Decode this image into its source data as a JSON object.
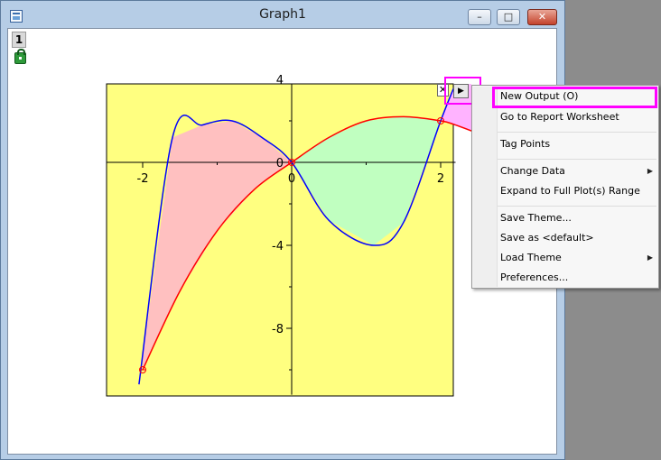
{
  "window": {
    "title": "Graph1",
    "minimize_glyph": "–",
    "maximize_glyph": "□",
    "close_glyph": "✕"
  },
  "layer": {
    "tab_label": "1"
  },
  "plot_buttons": {
    "close_glyph": "✕",
    "arrow_glyph": "▶"
  },
  "chart_data": {
    "type": "area",
    "x_ticks": [
      -2,
      0,
      2
    ],
    "y_ticks": [
      4,
      0,
      -4,
      -8
    ],
    "xlim": [
      -2.5,
      2.2
    ],
    "ylim": [
      -11.2,
      3.8
    ],
    "grid": false,
    "legend": "none",
    "series": [
      {
        "color": "#0000ff",
        "x": [
          -2.05,
          -1.6,
          -1.2,
          -0.8,
          -0.4,
          0,
          0.5,
          1.1,
          1.5,
          2.0,
          2.2
        ],
        "y": [
          -10.7,
          1.2,
          1.8,
          2.0,
          1.2,
          0,
          -2.8,
          -4.0,
          -2.9,
          2.0,
          3.8
        ]
      },
      {
        "color": "#ff0000",
        "x": [
          -2,
          -1.5,
          -1,
          -0.5,
          0,
          0.5,
          1,
          1.5,
          2,
          2.2,
          2.5
        ],
        "y": [
          -10,
          -6.2,
          -3.3,
          -1.3,
          0,
          1.2,
          2.0,
          2.2,
          2.0,
          1.8,
          1.4
        ]
      }
    ],
    "intersection_points": [
      {
        "x": -2,
        "y": -10
      },
      {
        "x": 0,
        "y": 0
      },
      {
        "x": 2,
        "y": 2
      }
    ],
    "fill_colors": [
      "#ffc0c0",
      "#c0ffc0",
      "#ffb3ff"
    ],
    "plot_background": "#ffff80"
  },
  "context_menu": {
    "items": [
      "New Output (O)",
      "Go to Report Worksheet",
      "Tag Points",
      "Change Data",
      "Expand to Full Plot(s) Range",
      "Save Theme...",
      "Save as <default>",
      "Load Theme",
      "Preferences..."
    ],
    "submenu_glyph": "▶"
  },
  "colors": {
    "highlight": "#ff00ff",
    "title_bar": "#b6cde6",
    "desktop": "#8c8c8c"
  }
}
